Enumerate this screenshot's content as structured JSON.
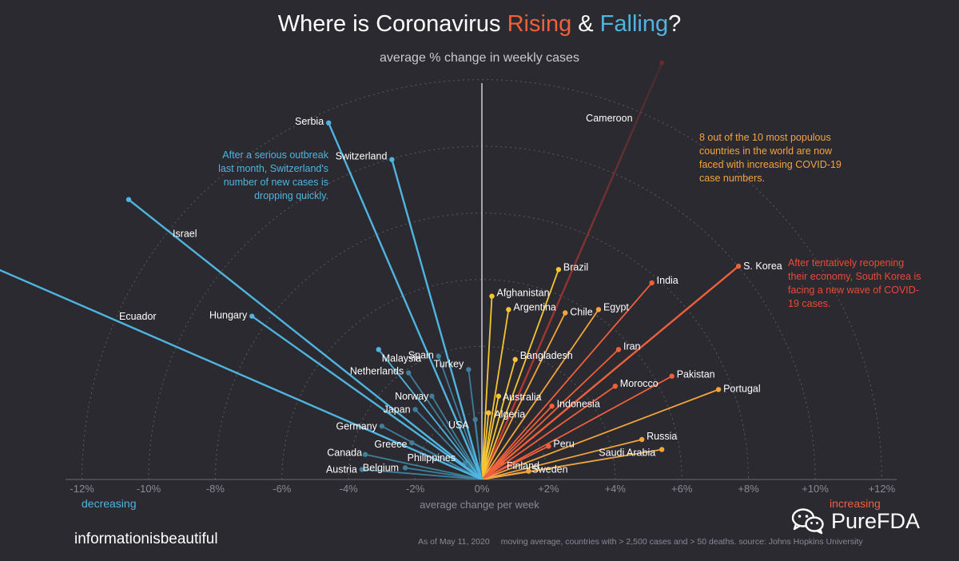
{
  "title": {
    "part1": "Where is Coronavirus ",
    "rising": "Rising",
    "amp": " & ",
    "falling": "Falling",
    "end": "?"
  },
  "subtitle": "average % change in weekly cases",
  "annotations": {
    "switzerland": "After a serious outbreak last month, Switzerland's number of new cases is dropping quickly.",
    "populous": "8 out of the 10 most populous countries in the world are now faced with increasing COVID-19 case numbers.",
    "korea": "After tentatively reopening their economy, South Korea is facing a new wave of COVID-19 cases."
  },
  "labels": {
    "decreasing": "decreasing",
    "increasing": "increasing",
    "xaxis": "average change per week"
  },
  "footer": {
    "brand": "informationisbeautiful",
    "date": "As of May 11, 2020",
    "source": "moving average, countries with > 2,500 cases and > 50 deaths. source: Johns Hopkins University"
  },
  "watermark": {
    "text": "PureFDA",
    "icon": "wechat-icon"
  },
  "colors": {
    "background": "#2a2a30",
    "falling": "#4fb4df",
    "rising": "#f0603a",
    "yellow": "#f7c531",
    "orange": "#f4a43c",
    "red": "#d43a32",
    "grid": "#5a5a62"
  },
  "chart_data": {
    "type": "radial-lollipop",
    "x_axis": {
      "min": -12,
      "max": 12,
      "ticks": [
        -12,
        -10,
        -8,
        -6,
        -4,
        -2,
        0,
        2,
        4,
        6,
        8,
        10,
        12
      ],
      "unit": "%"
    },
    "series": [
      {
        "name": "Cameroon",
        "x": 5.4,
        "y": 12.5
      },
      {
        "name": "S. Korea",
        "x": 7.7,
        "y": 6.4
      },
      {
        "name": "Brazil",
        "x": 2.3,
        "y": 6.3
      },
      {
        "name": "India",
        "x": 5.1,
        "y": 5.9
      },
      {
        "name": "Afghanistan",
        "x": 0.3,
        "y": 5.5
      },
      {
        "name": "Argentina",
        "x": 0.8,
        "y": 5.1
      },
      {
        "name": "Chile",
        "x": 2.5,
        "y": 5.0
      },
      {
        "name": "Egypt",
        "x": 3.5,
        "y": 5.1
      },
      {
        "name": "Iran",
        "x": 4.1,
        "y": 3.9
      },
      {
        "name": "Bangladesh",
        "x": 1.0,
        "y": 3.6
      },
      {
        "name": "Pakistan",
        "x": 5.7,
        "y": 3.1
      },
      {
        "name": "Portugal",
        "x": 7.1,
        "y": 2.7
      },
      {
        "name": "Morocco",
        "x": 4.0,
        "y": 2.8
      },
      {
        "name": "Australia",
        "x": 0.5,
        "y": 2.5
      },
      {
        "name": "Indonesia",
        "x": 2.1,
        "y": 2.2
      },
      {
        "name": "Algeria",
        "x": 0.2,
        "y": 2.0
      },
      {
        "name": "Russia",
        "x": 4.8,
        "y": 1.2
      },
      {
        "name": "Peru",
        "x": 2.0,
        "y": 1.0
      },
      {
        "name": "Saudi Arabia",
        "x": 5.4,
        "y": 0.9
      },
      {
        "name": "Finland",
        "x": 0.6,
        "y": 0.5
      },
      {
        "name": "Sweden",
        "x": 1.4,
        "y": 0.25
      },
      {
        "name": "USA",
        "x": -0.2,
        "y": 1.8
      },
      {
        "name": "Turkey",
        "x": -0.4,
        "y": 3.3
      },
      {
        "name": "Spain",
        "x": -1.3,
        "y": 3.7
      },
      {
        "name": "Philippines",
        "x": -0.5,
        "y": 0.5
      },
      {
        "name": "Belgium",
        "x": -2.3,
        "y": 0.35
      },
      {
        "name": "Austria",
        "x": -3.6,
        "y": 0.3
      },
      {
        "name": "Canada",
        "x": -3.5,
        "y": 0.75
      },
      {
        "name": "Greece",
        "x": -2.1,
        "y": 1.1
      },
      {
        "name": "Germany",
        "x": -3.0,
        "y": 1.6
      },
      {
        "name": "Japan",
        "x": -2.0,
        "y": 2.1
      },
      {
        "name": "Norway",
        "x": -1.5,
        "y": 2.5
      },
      {
        "name": "Netherlands",
        "x": -2.2,
        "y": 3.2
      },
      {
        "name": "Malaysia",
        "x": -3.1,
        "y": 3.9
      },
      {
        "name": "Hungary",
        "x": -6.9,
        "y": 4.9
      },
      {
        "name": "Israel",
        "x": -10.6,
        "y": 8.4
      },
      {
        "name": "Serbia",
        "x": -4.6,
        "y": 10.7
      },
      {
        "name": "Switzerland",
        "x": -2.7,
        "y": 9.6
      },
      {
        "name": "Ecuador",
        "x": -14.5,
        "y": 6.3
      }
    ]
  }
}
